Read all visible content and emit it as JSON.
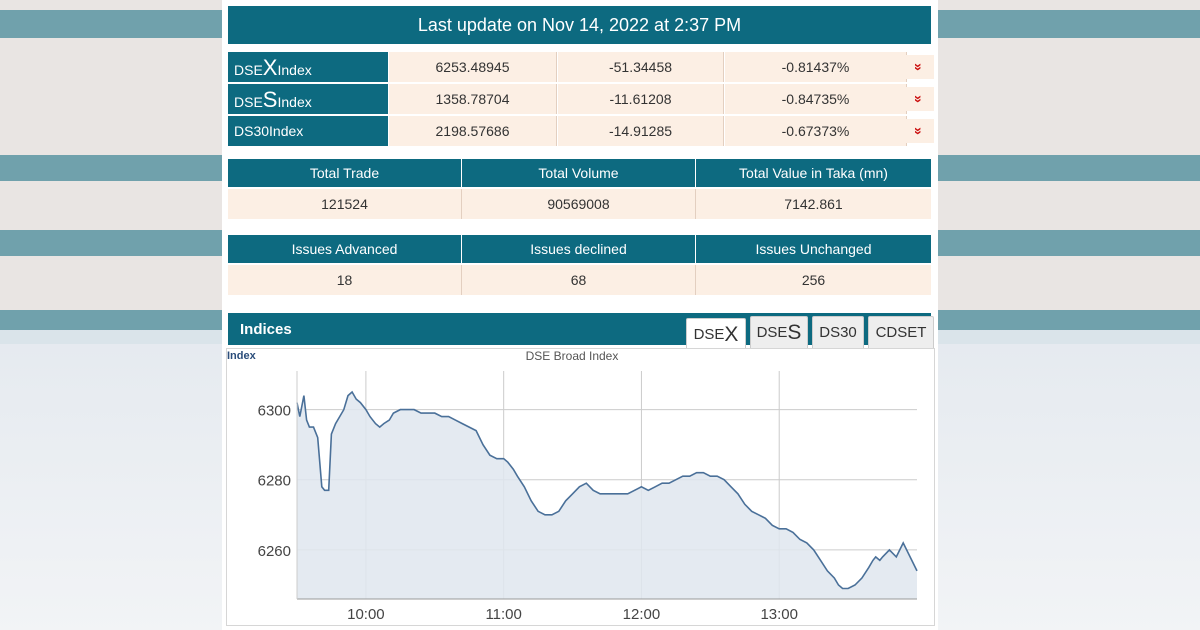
{
  "header": {
    "update_text": "Last update on Nov 14, 2022 at 2:37 PM"
  },
  "indices": [
    {
      "prefix": "DSE",
      "letter": "X",
      "suffix": " Index",
      "value": "6253.48945",
      "change": "-51.34458",
      "percent": "-0.81437%",
      "arrow": "»"
    },
    {
      "prefix": "DSE",
      "letter": "S",
      "suffix": " Index",
      "value": "1358.78704",
      "change": "-11.61208",
      "percent": "-0.84735%",
      "arrow": "»"
    },
    {
      "prefix": "DS30",
      "letter": "",
      "suffix": " Index",
      "value": "2198.57686",
      "change": "-14.91285",
      "percent": "-0.67373%",
      "arrow": "»"
    }
  ],
  "trade": {
    "headers": [
      "Total Trade",
      "Total Volume",
      "Total Value in Taka (mn)"
    ],
    "values": [
      "121524",
      "90569008",
      "7142.861"
    ]
  },
  "issues": {
    "headers": [
      "Issues Advanced",
      "Issues declined",
      "Issues Unchanged"
    ],
    "values": [
      "18",
      "68",
      "256"
    ]
  },
  "indices_section": {
    "title": "Indices",
    "tabs": [
      {
        "prefix": "DSE",
        "letter": "X"
      },
      {
        "prefix": "DSE",
        "letter": "S"
      },
      {
        "prefix": "DS30",
        "letter": ""
      },
      {
        "prefix": "CDSET",
        "letter": ""
      }
    ],
    "active_tab": 0
  },
  "colors": {
    "teal": "#0d6a80",
    "cell_bg": "#fcefe4",
    "down_arrow": "#cc1111",
    "line": "#4a7099",
    "fill": "#dfe6ef"
  },
  "chart_data": {
    "type": "area",
    "title": "DSE Broad Index",
    "ylabel": "Index",
    "xlabel": "",
    "ylim": [
      6246,
      6311
    ],
    "yticks": [
      6260,
      6280,
      6300
    ],
    "xtick_labels": [
      "10:00",
      "11:00",
      "12:00",
      "13:00"
    ],
    "xtick_hours": [
      10,
      11,
      12,
      13
    ],
    "xlim": [
      9.5,
      14.0
    ],
    "grid": true,
    "series": [
      {
        "x": [
          9.5,
          9.52,
          9.55,
          9.57,
          9.59,
          9.62,
          9.65,
          9.68,
          9.7,
          9.73,
          9.75,
          9.78,
          9.81,
          9.84,
          9.87,
          9.9,
          9.93,
          9.96,
          10.0,
          10.03,
          10.07,
          10.1,
          10.13,
          10.17,
          10.2,
          10.25,
          10.3,
          10.35,
          10.4,
          10.45,
          10.5,
          10.55,
          10.6,
          10.65,
          10.7,
          10.75,
          10.8,
          10.85,
          10.9,
          10.95,
          11.0,
          11.03,
          11.07,
          11.1,
          11.15,
          11.2,
          11.25,
          11.3,
          11.35,
          11.4,
          11.45,
          11.5,
          11.55,
          11.6,
          11.65,
          11.7,
          11.75,
          11.8,
          11.85,
          11.9,
          11.95,
          12.0,
          12.05,
          12.1,
          12.15,
          12.2,
          12.25,
          12.3,
          12.35,
          12.4,
          12.45,
          12.5,
          12.55,
          12.6,
          12.65,
          12.7,
          12.75,
          12.8,
          12.85,
          12.9,
          12.95,
          13.0,
          13.05,
          13.1,
          13.15,
          13.2,
          13.25,
          13.3,
          13.35,
          13.4,
          13.43,
          13.46,
          13.5,
          13.55,
          13.6,
          13.65,
          13.68,
          13.7,
          13.73,
          13.75,
          13.8,
          13.85,
          13.9,
          14.0
        ],
        "y": [
          6302,
          6298,
          6304,
          6297,
          6295,
          6295,
          6292,
          6278,
          6277,
          6277,
          6293,
          6296,
          6298,
          6300,
          6304,
          6305,
          6303,
          6302,
          6300,
          6298,
          6296,
          6295,
          6296,
          6297,
          6299,
          6300,
          6300,
          6300,
          6299,
          6299,
          6299,
          6298,
          6298,
          6297,
          6296,
          6295,
          6294,
          6290,
          6287,
          6286,
          6286,
          6285,
          6283,
          6281,
          6278,
          6274,
          6271,
          6270,
          6270,
          6271,
          6274,
          6276,
          6278,
          6279,
          6277,
          6276,
          6276,
          6276,
          6276,
          6276,
          6277,
          6278,
          6277,
          6278,
          6279,
          6279,
          6280,
          6281,
          6281,
          6282,
          6282,
          6281,
          6281,
          6280,
          6278,
          6276,
          6273,
          6271,
          6270,
          6269,
          6267,
          6266,
          6266,
          6265,
          6263,
          6262,
          6260,
          6257,
          6254,
          6252,
          6250,
          6249,
          6249,
          6250,
          6252,
          6255,
          6257,
          6258,
          6257,
          6258,
          6260,
          6258,
          6262,
          6254
        ]
      }
    ]
  }
}
